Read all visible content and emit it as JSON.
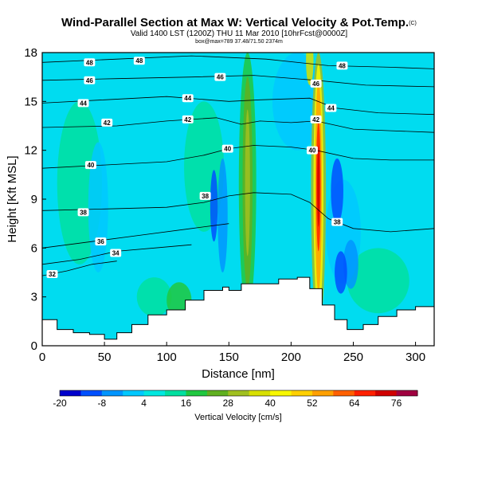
{
  "title": "Wind-Parallel Section at Max W: Vertical Velocity & Pot.Temp.",
  "title_mark": "(C)",
  "subtitle": "Valid 1400 LST (1200Z) THU 11 Mar 2010 [10hrFcst@0000Z]",
  "subtitle2": "box@max=789 37.48/71.50 2374m",
  "chart_data": {
    "type": "heatmap",
    "title": "Wind-Parallel Section at Max W: Vertical Velocity & Pot.Temp.",
    "xlabel": "Distance [nm]",
    "ylabel": "Height [Kft MSL]",
    "xlim": [
      0,
      315
    ],
    "ylim": [
      0,
      18
    ],
    "xticks": [
      0,
      50,
      100,
      150,
      200,
      250,
      300
    ],
    "yticks": [
      0,
      3,
      6,
      9,
      12,
      15,
      18
    ],
    "colorbar": {
      "label": "Vertical Velocity [cm/s]",
      "tick_labels": [
        -20,
        -8,
        4,
        16,
        28,
        40,
        52,
        64,
        76
      ],
      "levels": [
        -20,
        -14,
        -8,
        -2,
        4,
        10,
        16,
        22,
        28,
        34,
        40,
        46,
        52,
        58,
        64,
        70,
        76,
        82
      ],
      "colors": [
        "#0000cc",
        "#0050ff",
        "#0095ff",
        "#00c8ff",
        "#00e8e0",
        "#00e0a0",
        "#20c840",
        "#60b020",
        "#a0c020",
        "#d8e000",
        "#f8f800",
        "#ffd000",
        "#ffa000",
        "#ff6000",
        "#ff2000",
        "#d00000",
        "#a00040"
      ]
    },
    "terrain": [
      [
        0,
        1.6
      ],
      [
        12,
        1.0
      ],
      [
        25,
        0.8
      ],
      [
        38,
        0.7
      ],
      [
        50,
        0.4
      ],
      [
        60,
        0.8
      ],
      [
        72,
        1.3
      ],
      [
        85,
        1.9
      ],
      [
        100,
        2.2
      ],
      [
        115,
        2.8
      ],
      [
        130,
        3.4
      ],
      [
        145,
        3.6
      ],
      [
        150,
        3.4
      ],
      [
        160,
        3.8
      ],
      [
        175,
        3.8
      ],
      [
        190,
        4.1
      ],
      [
        205,
        4.2
      ],
      [
        215,
        3.5
      ],
      [
        225,
        2.5
      ],
      [
        235,
        1.6
      ],
      [
        245,
        1.0
      ],
      [
        258,
        1.3
      ],
      [
        270,
        1.8
      ],
      [
        285,
        2.2
      ],
      [
        300,
        2.4
      ],
      [
        315,
        2.6
      ]
    ],
    "theta_contours": [
      {
        "label": "32",
        "points": [
          [
            0,
            4.3
          ],
          [
            20,
            4.6
          ],
          [
            40,
            5.0
          ],
          [
            60,
            5.2
          ]
        ]
      },
      {
        "label": "34",
        "points": [
          [
            0,
            5.0
          ],
          [
            30,
            5.3
          ],
          [
            60,
            5.8
          ],
          [
            90,
            6.0
          ],
          [
            120,
            6.2
          ]
        ]
      },
      {
        "label": "36",
        "points": [
          [
            0,
            6.0
          ],
          [
            40,
            6.4
          ],
          [
            80,
            6.8
          ],
          [
            120,
            7.2
          ],
          [
            150,
            7.5
          ]
        ]
      },
      {
        "label": "38",
        "points": [
          [
            0,
            8.3
          ],
          [
            50,
            8.4
          ],
          [
            100,
            8.5
          ],
          [
            130,
            8.8
          ],
          [
            150,
            9.2
          ],
          [
            170,
            9.4
          ],
          [
            200,
            9.3
          ],
          [
            215,
            8.8
          ],
          [
            230,
            7.8
          ],
          [
            250,
            7.2
          ],
          [
            280,
            7.0
          ],
          [
            315,
            7.2
          ]
        ]
      },
      {
        "label": "40",
        "points": [
          [
            0,
            10.9
          ],
          [
            50,
            11.1
          ],
          [
            100,
            11.3
          ],
          [
            130,
            11.7
          ],
          [
            150,
            12.1
          ],
          [
            170,
            12.3
          ],
          [
            200,
            12.2
          ],
          [
            220,
            12.0
          ],
          [
            250,
            11.5
          ],
          [
            280,
            11.4
          ],
          [
            315,
            11.4
          ]
        ]
      },
      {
        "label": "42",
        "points": [
          [
            0,
            13.4
          ],
          [
            60,
            13.5
          ],
          [
            100,
            13.8
          ],
          [
            140,
            14.0
          ],
          [
            160,
            13.6
          ],
          [
            175,
            13.8
          ],
          [
            200,
            13.7
          ],
          [
            220,
            13.8
          ],
          [
            250,
            13.3
          ],
          [
            280,
            13.2
          ],
          [
            315,
            13.1
          ]
        ]
      },
      {
        "label": "44",
        "points": [
          [
            0,
            14.9
          ],
          [
            50,
            15.1
          ],
          [
            100,
            15.3
          ],
          [
            150,
            15.0
          ],
          [
            175,
            15.1
          ],
          [
            215,
            15.2
          ],
          [
            235,
            14.6
          ],
          [
            270,
            14.3
          ],
          [
            315,
            14.2
          ]
        ]
      },
      {
        "label": "46",
        "points": [
          [
            0,
            16.3
          ],
          [
            60,
            16.4
          ],
          [
            120,
            16.5
          ],
          [
            170,
            16.6
          ],
          [
            220,
            16.3
          ],
          [
            260,
            16.0
          ],
          [
            315,
            15.9
          ]
        ]
      },
      {
        "label": "48",
        "points": [
          [
            0,
            17.4
          ],
          [
            60,
            17.6
          ],
          [
            120,
            17.8
          ],
          [
            180,
            17.6
          ],
          [
            230,
            17.2
          ],
          [
            280,
            17.1
          ],
          [
            315,
            17.0
          ]
        ]
      }
    ],
    "annotations": [
      {
        "text": "48",
        "x": 38,
        "y": 17.4
      },
      {
        "text": "48",
        "x": 78,
        "y": 17.5
      },
      {
        "text": "46",
        "x": 38,
        "y": 16.3
      },
      {
        "text": "46",
        "x": 143,
        "y": 16.5
      },
      {
        "text": "46",
        "x": 220,
        "y": 16.1
      },
      {
        "text": "48",
        "x": 241,
        "y": 17.2
      },
      {
        "text": "44",
        "x": 33,
        "y": 14.9
      },
      {
        "text": "44",
        "x": 117,
        "y": 15.2
      },
      {
        "text": "44",
        "x": 232,
        "y": 14.6
      },
      {
        "text": "42",
        "x": 52,
        "y": 13.7
      },
      {
        "text": "42",
        "x": 117,
        "y": 13.9
      },
      {
        "text": "42",
        "x": 220,
        "y": 13.9
      },
      {
        "text": "40",
        "x": 39,
        "y": 11.1
      },
      {
        "text": "40",
        "x": 149,
        "y": 12.1
      },
      {
        "text": "40",
        "x": 217,
        "y": 12.0
      },
      {
        "text": "38",
        "x": 33,
        "y": 8.2
      },
      {
        "text": "38",
        "x": 131,
        "y": 9.2
      },
      {
        "text": "38",
        "x": 237,
        "y": 7.6
      },
      {
        "text": "36",
        "x": 47,
        "y": 6.4
      },
      {
        "text": "34",
        "x": 59,
        "y": 5.7
      },
      {
        "text": "32",
        "x": 8,
        "y": 4.4
      }
    ]
  }
}
